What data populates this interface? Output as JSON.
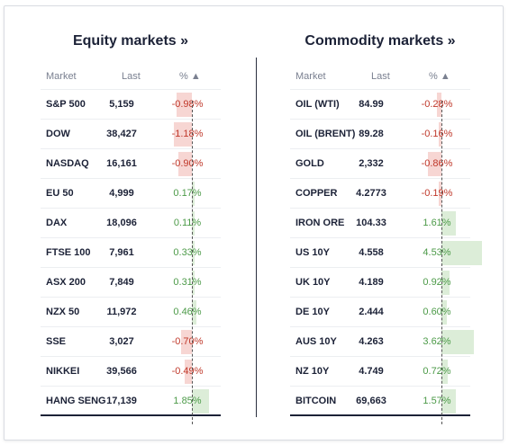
{
  "equity": {
    "title": "Equity markets »",
    "headers": {
      "market": "Market",
      "last": "Last",
      "pct": "% ▲"
    },
    "rows": [
      {
        "name": "S&P 500",
        "last": "5,159",
        "pct": "-0.98%",
        "value": -0.98
      },
      {
        "name": "DOW",
        "last": "38,427",
        "pct": "-1.18%",
        "value": -1.18
      },
      {
        "name": "NASDAQ",
        "last": "16,161",
        "pct": "-0.90%",
        "value": -0.9
      },
      {
        "name": "EU 50",
        "last": "4,999",
        "pct": "0.17%",
        "value": 0.17
      },
      {
        "name": "DAX",
        "last": "18,096",
        "pct": "0.11%",
        "value": 0.11
      },
      {
        "name": "FTSE 100",
        "last": "7,961",
        "pct": "0.33%",
        "value": 0.33
      },
      {
        "name": "ASX 200",
        "last": "7,849",
        "pct": "0.31%",
        "value": 0.31
      },
      {
        "name": "NZX 50",
        "last": "11,972",
        "pct": "0.46%",
        "value": 0.46
      },
      {
        "name": "SSE",
        "last": "3,027",
        "pct": "-0.70%",
        "value": -0.7
      },
      {
        "name": "NIKKEI",
        "last": "39,566",
        "pct": "-0.49%",
        "value": -0.49
      },
      {
        "name": "HANG SENG",
        "last": "17,139",
        "pct": "1.85%",
        "value": 1.85
      }
    ]
  },
  "commodity": {
    "title": "Commodity markets »",
    "headers": {
      "market": "Market",
      "last": "Last",
      "pct": "% ▲"
    },
    "rows": [
      {
        "name": "OIL (WTI)",
        "last": "84.99",
        "pct": "-0.28%",
        "value": -0.28
      },
      {
        "name": "OIL (BRENT)",
        "last": "89.28",
        "pct": "-0.16%",
        "value": -0.16
      },
      {
        "name": "GOLD",
        "last": "2,332",
        "pct": "-0.86%",
        "value": -0.86
      },
      {
        "name": "COPPER",
        "last": "4.2773",
        "pct": "-0.19%",
        "value": -0.19
      },
      {
        "name": "IRON ORE",
        "last": "104.33",
        "pct": "1.61%",
        "value": 1.61
      },
      {
        "name": "US 10Y",
        "last": "4.558",
        "pct": "4.53%",
        "value": 4.53
      },
      {
        "name": "UK 10Y",
        "last": "4.189",
        "pct": "0.92%",
        "value": 0.92
      },
      {
        "name": "DE 10Y",
        "last": "2.444",
        "pct": "0.60%",
        "value": 0.6
      },
      {
        "name": "AUS 10Y",
        "last": "4.263",
        "pct": "3.62%",
        "value": 3.62
      },
      {
        "name": "NZ 10Y",
        "last": "4.749",
        "pct": "0.72%",
        "value": 0.72
      },
      {
        "name": "BITCOIN",
        "last": "69,663",
        "pct": "1.57%",
        "value": 1.57
      }
    ]
  },
  "colors": {
    "negative": "#c0392b",
    "positive": "#4c9a48",
    "neg_bar": "#f7d6d3",
    "pos_bar": "#dcedd8"
  }
}
